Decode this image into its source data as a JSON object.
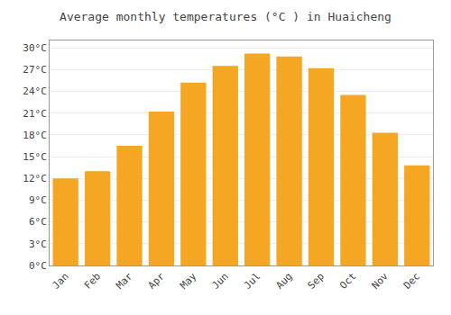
{
  "chart_data": {
    "type": "bar",
    "title": "Average monthly temperatures (°C ) in Huaicheng",
    "categories": [
      "Jan",
      "Feb",
      "Mar",
      "Apr",
      "May",
      "Jun",
      "Jul",
      "Aug",
      "Sep",
      "Oct",
      "Nov",
      "Dec"
    ],
    "values": [
      12.0,
      13.0,
      16.5,
      21.2,
      25.2,
      27.5,
      29.2,
      28.8,
      27.2,
      23.5,
      18.3,
      13.8
    ],
    "color": "#F5A623",
    "ylim": [
      0,
      31
    ],
    "yticks": [
      {
        "value": 0,
        "label": "0°C"
      },
      {
        "value": 3,
        "label": "3°C"
      },
      {
        "value": 6,
        "label": "6°C"
      },
      {
        "value": 9,
        "label": "9°C"
      },
      {
        "value": 12,
        "label": "12°C"
      },
      {
        "value": 15,
        "label": "15°C"
      },
      {
        "value": 18,
        "label": "18°C"
      },
      {
        "value": 21,
        "label": "21°C"
      },
      {
        "value": 24,
        "label": "24°C"
      },
      {
        "value": 27,
        "label": "27°C"
      },
      {
        "value": 30,
        "label": "30°C"
      }
    ],
    "grid": true
  }
}
